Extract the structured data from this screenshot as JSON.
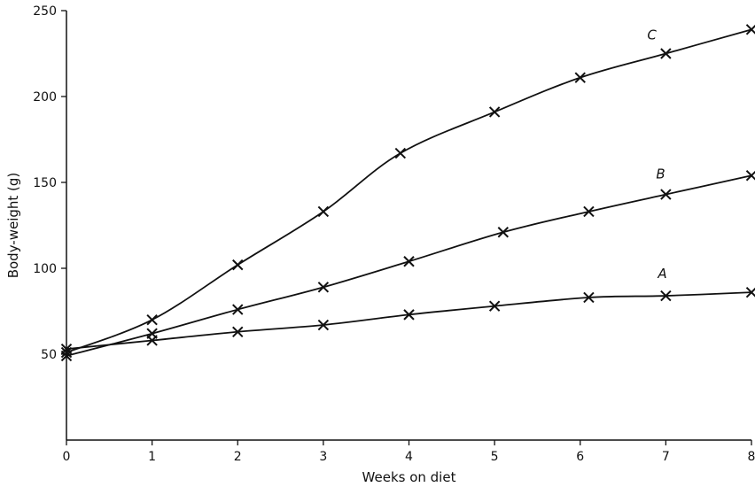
{
  "chart_data": {
    "type": "line",
    "xlabel": "Weeks on diet",
    "ylabel": "Body-weight (g)",
    "xlim": [
      0,
      8
    ],
    "ylim": [
      0,
      250
    ],
    "x_ticks": [
      "0",
      "1",
      "2",
      "3",
      "4",
      "5",
      "6",
      "7",
      "8"
    ],
    "y_ticks": [
      "50",
      "100",
      "150",
      "200",
      "250"
    ],
    "x": [
      0,
      1,
      2,
      3,
      4,
      5,
      6,
      7,
      8
    ],
    "series": [
      {
        "name": "A",
        "marker": "x",
        "points": [
          [
            0,
            53
          ],
          [
            1,
            58
          ],
          [
            2,
            63
          ],
          [
            3,
            67
          ],
          [
            4,
            73
          ],
          [
            5,
            78
          ],
          [
            6.1,
            83
          ],
          [
            7,
            84
          ],
          [
            8,
            86
          ]
        ]
      },
      {
        "name": "B",
        "marker": "x",
        "points": [
          [
            0,
            49
          ],
          [
            1,
            62
          ],
          [
            2,
            76
          ],
          [
            3,
            89
          ],
          [
            4,
            104
          ],
          [
            5.1,
            121
          ],
          [
            6.1,
            133
          ],
          [
            7,
            143
          ],
          [
            8,
            154
          ]
        ]
      },
      {
        "name": "C",
        "marker": "x",
        "points": [
          [
            0,
            51
          ],
          [
            1,
            70
          ],
          [
            2,
            102
          ],
          [
            3,
            133
          ],
          [
            3.9,
            167
          ],
          [
            5,
            191
          ],
          [
            6,
            211
          ],
          [
            7,
            225
          ],
          [
            8,
            239
          ]
        ]
      }
    ],
    "grid": false
  }
}
